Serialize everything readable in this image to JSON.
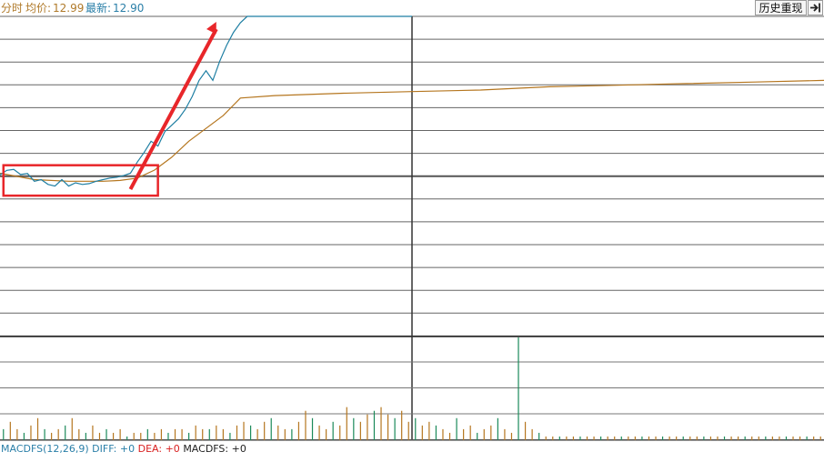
{
  "header": {
    "mode_label": "分时",
    "avg_label": "均价:",
    "avg_value": "12.99",
    "last_label": "最新:",
    "last_value": "12.90",
    "replay_button": "历史重现",
    "exit_icon": "exit-arrow-icon"
  },
  "macd": {
    "name": "MACDFS(12,26,9)",
    "diff_label": "DIFF:",
    "diff_value": "+0",
    "dea_label": "DEA:",
    "dea_value": "+0",
    "macdfs_label": "MACDFS:",
    "macdfs_value": "+0"
  },
  "colors": {
    "price_line": "#1f7fa3",
    "avg_line": "#b5761f",
    "grid": "#3a3a3a",
    "annotation": "#e8262a",
    "volume_up": "#b5761f",
    "volume_down": "#1b8a5a"
  },
  "chart_data": {
    "type": "line",
    "x_sessions": 240,
    "series": [
      {
        "kind": "price",
        "x": [
          0,
          2,
          4,
          6,
          8,
          10,
          12,
          14,
          16,
          18,
          20,
          22,
          24,
          26,
          28,
          30,
          32,
          34,
          36,
          38,
          40,
          42,
          44,
          46,
          48,
          50,
          52,
          54,
          56,
          58,
          60,
          62,
          64,
          66,
          68,
          70,
          72,
          74,
          76,
          78,
          80,
          82,
          84,
          86,
          88,
          90,
          92,
          94,
          96,
          98,
          100,
          102,
          104,
          106,
          108,
          110,
          112,
          114,
          116,
          118,
          120
        ],
        "y": [
          0.1,
          0.38,
          0.44,
          0.12,
          0.18,
          -0.3,
          -0.2,
          -0.5,
          -0.6,
          -0.2,
          -0.6,
          -0.4,
          -0.5,
          -0.45,
          -0.3,
          -0.2,
          -0.1,
          -0.05,
          0.05,
          0.2,
          0.9,
          1.5,
          2.2,
          1.9,
          2.8,
          3.2,
          3.6,
          4.2,
          5.0,
          6.0,
          6.6,
          6.0,
          7.2,
          8.2,
          9.0,
          9.6,
          10.0,
          10.0,
          10.0,
          10.0,
          10.0,
          10.0,
          10.0,
          10.0,
          10.0,
          10.0,
          10.0,
          10.0,
          10.0,
          10.0,
          10.0,
          10.0,
          10.0,
          10.0,
          10.0,
          10.0,
          10.0,
          10.0,
          10.0,
          10.0,
          10.0
        ]
      },
      {
        "kind": "average",
        "x": [
          0,
          10,
          20,
          30,
          35,
          40,
          45,
          50,
          55,
          60,
          65,
          70,
          80,
          100,
          120,
          140,
          160,
          180,
          200,
          220,
          240
        ],
        "y": [
          0.2,
          -0.2,
          -0.3,
          -0.3,
          -0.25,
          -0.1,
          0.4,
          1.2,
          2.2,
          3.0,
          3.8,
          4.9,
          5.05,
          5.2,
          5.3,
          5.4,
          5.6,
          5.7,
          5.8,
          5.9,
          6.0
        ]
      }
    ],
    "volume": [
      3,
      5,
      3,
      2,
      4,
      6,
      3,
      2,
      3,
      4,
      6,
      3,
      2,
      4,
      2,
      3,
      2,
      3,
      1,
      2,
      2,
      3,
      2,
      3,
      2,
      3,
      3,
      2,
      4,
      3,
      3,
      4,
      3,
      2,
      4,
      5,
      4,
      3,
      5,
      6,
      4,
      3,
      3,
      5,
      8,
      6,
      4,
      3,
      5,
      4,
      9,
      6,
      5,
      7,
      8,
      9,
      7,
      6,
      8,
      5,
      6,
      4,
      5,
      4,
      3,
      2,
      6,
      3,
      4,
      2,
      3,
      4,
      6,
      3,
      2,
      28,
      5,
      3,
      2,
      1,
      1,
      1,
      1,
      1,
      1,
      1,
      1,
      1,
      1,
      1,
      1,
      1,
      1,
      1,
      1,
      1,
      1,
      1,
      1,
      1,
      1,
      1,
      1,
      1,
      1,
      1,
      1,
      1,
      1,
      1,
      1,
      1,
      1,
      1,
      1,
      1,
      1,
      1,
      1,
      1,
      1,
      1
    ],
    "annotations": [
      {
        "type": "rectangle",
        "x_from": 1,
        "x_to": 46,
        "y_from": -1.2,
        "y_to": 0.7
      },
      {
        "type": "arrow",
        "from": [
          38,
          -0.8
        ],
        "to": [
          63,
          10.0
        ]
      }
    ]
  }
}
